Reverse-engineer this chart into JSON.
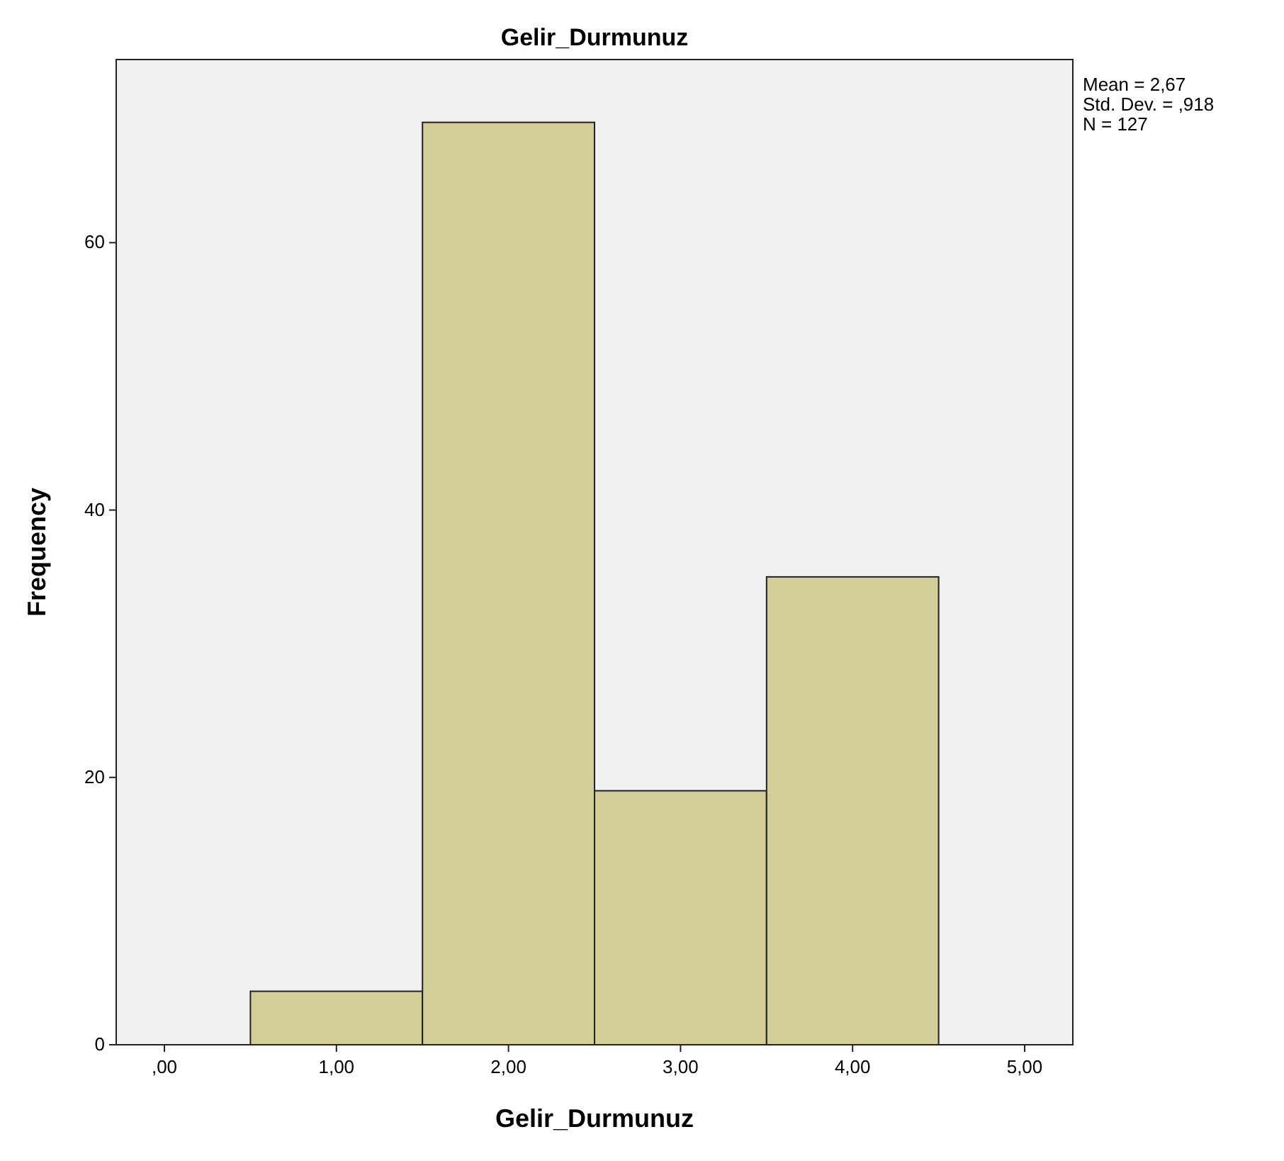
{
  "chart_data": {
    "type": "histogram",
    "title": "Gelir_Durmunuz",
    "xlabel": "Gelir_Durmunuz",
    "ylabel": "Frequency",
    "bins": [
      0.5,
      1.5,
      2.5,
      3.5,
      4.5
    ],
    "values": [
      4,
      69,
      19,
      35
    ],
    "color": "#d3ce97",
    "xlim": [
      -0.28,
      5.28
    ],
    "xticks": [
      {
        "value": 0,
        "label": ",00"
      },
      {
        "value": 1,
        "label": "1,00"
      },
      {
        "value": 2,
        "label": "2,00"
      },
      {
        "value": 3,
        "label": "3,00"
      },
      {
        "value": 4,
        "label": "4,00"
      },
      {
        "value": 5,
        "label": "5,00"
      }
    ],
    "ylim": [
      0,
      73.7
    ],
    "yticks": [
      0,
      20,
      40,
      60
    ],
    "annotations": [
      "Mean = 2,67",
      "Std. Dev. = ,918",
      "N = 127"
    ]
  }
}
